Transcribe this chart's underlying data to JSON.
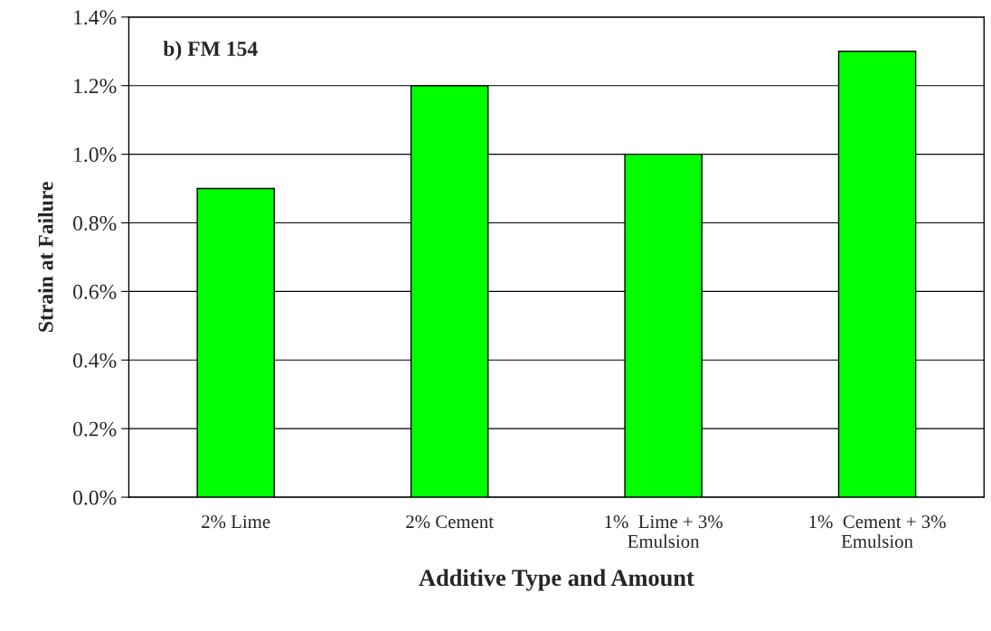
{
  "chart_data": {
    "type": "bar",
    "categories": [
      "2% Lime",
      "2% Cement",
      "1%  Lime + 3%\nEmulsion",
      "1%  Cement + 3%\nEmulsion"
    ],
    "values": [
      0.9,
      1.2,
      1.0,
      1.3
    ],
    "color": "#00ff00",
    "xlabel": "Additive Type and Amount",
    "ylabel": "Strain at Failure",
    "annotations": [
      "b) FM 154"
    ],
    "ylim": [
      0,
      1.4
    ],
    "yticks": [
      {
        "value": 0,
        "label": "0.0%"
      },
      {
        "value": 0.2,
        "label": "0.2%"
      },
      {
        "value": 0.4,
        "label": "0.4%"
      },
      {
        "value": 0.6,
        "label": "0.6%"
      },
      {
        "value": 0.8,
        "label": "0.8%"
      },
      {
        "value": 1.0,
        "label": "1.0%"
      },
      {
        "value": 1.2,
        "label": "1.2%"
      },
      {
        "value": 1.4,
        "label": "1.4%"
      }
    ],
    "grid": "y",
    "legend": false
  }
}
